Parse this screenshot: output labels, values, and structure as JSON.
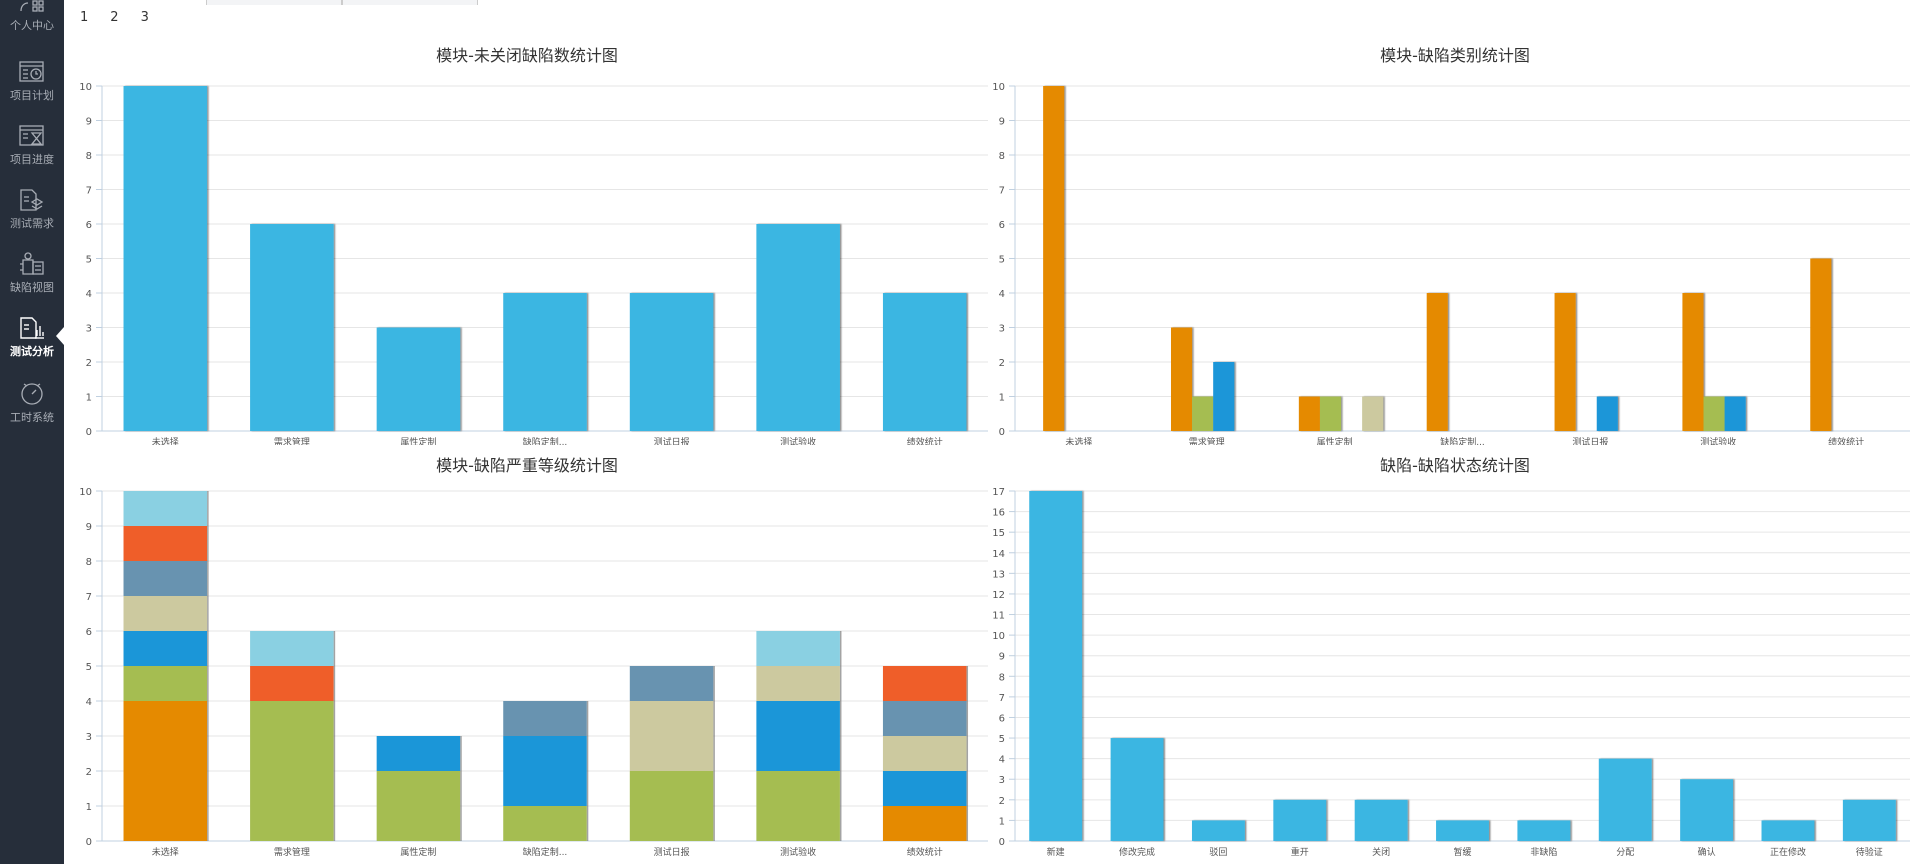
{
  "sidebar": {
    "items": [
      {
        "label": "个人中心",
        "icon": "user-grid-icon"
      },
      {
        "label": "项目计划",
        "icon": "calendar-clock-icon"
      },
      {
        "label": "项目进度",
        "icon": "hourglass-list-icon"
      },
      {
        "label": "测试需求",
        "icon": "document-layers-icon"
      },
      {
        "label": "缺陷视图",
        "icon": "bug-list-icon"
      },
      {
        "label": "测试分析",
        "icon": "document-chart-icon",
        "active": true
      },
      {
        "label": "工时系统",
        "icon": "stopwatch-icon"
      }
    ]
  },
  "pagination": {
    "pages": [
      "1",
      "2",
      "3"
    ]
  },
  "colors": {
    "bar": "#3bb6e2",
    "series": [
      "#e58a00",
      "#a5bd51",
      "#1b96d8",
      "#ccc99f",
      "#6893b0",
      "#ef5e29",
      "#8ad0e2"
    ]
  },
  "chart_data": [
    {
      "type": "bar",
      "title": "模块-未关闭缺陷数统计图",
      "categories": [
        "未选择",
        "需求管理",
        "属性定制",
        "缺陷定制...",
        "测试日报",
        "测试验收",
        "绩效统计"
      ],
      "values": [
        10,
        6,
        3,
        4,
        4,
        6,
        4
      ],
      "ylim": [
        0,
        10
      ],
      "yticks": [
        "0",
        "1",
        "2",
        "3",
        "4",
        "5",
        "6",
        "7",
        "8",
        "9",
        "10"
      ],
      "grid": true
    },
    {
      "type": "bar",
      "stacking": "grouped",
      "title": "模块-缺陷类别统计图",
      "categories": [
        "未选择",
        "需求管理",
        "属性定制",
        "缺陷定制...",
        "测试日报",
        "测试验收",
        "绩效统计"
      ],
      "series": [
        {
          "color": "#e58a00",
          "values": [
            10,
            3,
            1,
            4,
            4,
            4,
            5
          ]
        },
        {
          "color": "#a5bd51",
          "values": [
            0,
            1,
            1,
            0,
            0,
            1,
            0
          ]
        },
        {
          "color": "#1b96d8",
          "values": [
            0,
            2,
            0,
            0,
            1,
            1,
            0
          ]
        },
        {
          "color": "#ccc99f",
          "values": [
            0,
            0,
            1,
            0,
            0,
            0,
            0
          ]
        }
      ],
      "ylim": [
        0,
        10
      ],
      "yticks": [
        "0",
        "1",
        "2",
        "3",
        "4",
        "5",
        "6",
        "7",
        "8",
        "9",
        "10"
      ],
      "grid": true
    },
    {
      "type": "bar",
      "stacking": "stacked",
      "title": "模块-缺陷严重等级统计图",
      "categories": [
        "未选择",
        "需求管理",
        "属性定制",
        "缺陷定制...",
        "测试日报",
        "测试验收",
        "绩效统计"
      ],
      "series": [
        {
          "color": "#e58a00",
          "values": [
            4,
            0,
            0,
            0,
            0,
            0,
            1
          ]
        },
        {
          "color": "#a5bd51",
          "values": [
            1,
            4,
            2,
            1,
            2,
            2,
            0
          ]
        },
        {
          "color": "#1b96d8",
          "values": [
            1,
            0,
            1,
            2,
            0,
            2,
            1
          ]
        },
        {
          "color": "#ccc99f",
          "values": [
            1,
            0,
            0,
            0,
            2,
            1,
            1
          ]
        },
        {
          "color": "#6893b0",
          "values": [
            1,
            0,
            0,
            1,
            1,
            0,
            1
          ]
        },
        {
          "color": "#ef5e29",
          "values": [
            1,
            1,
            0,
            0,
            0,
            0,
            1
          ]
        },
        {
          "color": "#8ad0e2",
          "values": [
            1,
            1,
            0,
            0,
            0,
            1,
            0
          ]
        }
      ],
      "ylim": [
        0,
        10
      ],
      "yticks": [
        "0",
        "1",
        "2",
        "3",
        "4",
        "5",
        "6",
        "7",
        "8",
        "9",
        "10"
      ],
      "grid": true
    },
    {
      "type": "bar",
      "title": "缺陷-缺陷状态统计图",
      "categories": [
        "新建",
        "修改完成",
        "驳回",
        "重开",
        "关闭",
        "暂缓",
        "非缺陷",
        "分配",
        "确认",
        "正在修改",
        "待验证"
      ],
      "values": [
        17,
        5,
        1,
        2,
        2,
        1,
        1,
        4,
        3,
        1,
        2
      ],
      "ylim": [
        0,
        17
      ],
      "yticks": [
        "0",
        "1",
        "2",
        "3",
        "4",
        "5",
        "6",
        "7",
        "8",
        "9",
        "10",
        "11",
        "12",
        "13",
        "14",
        "15",
        "16",
        "17"
      ],
      "grid": true
    }
  ]
}
